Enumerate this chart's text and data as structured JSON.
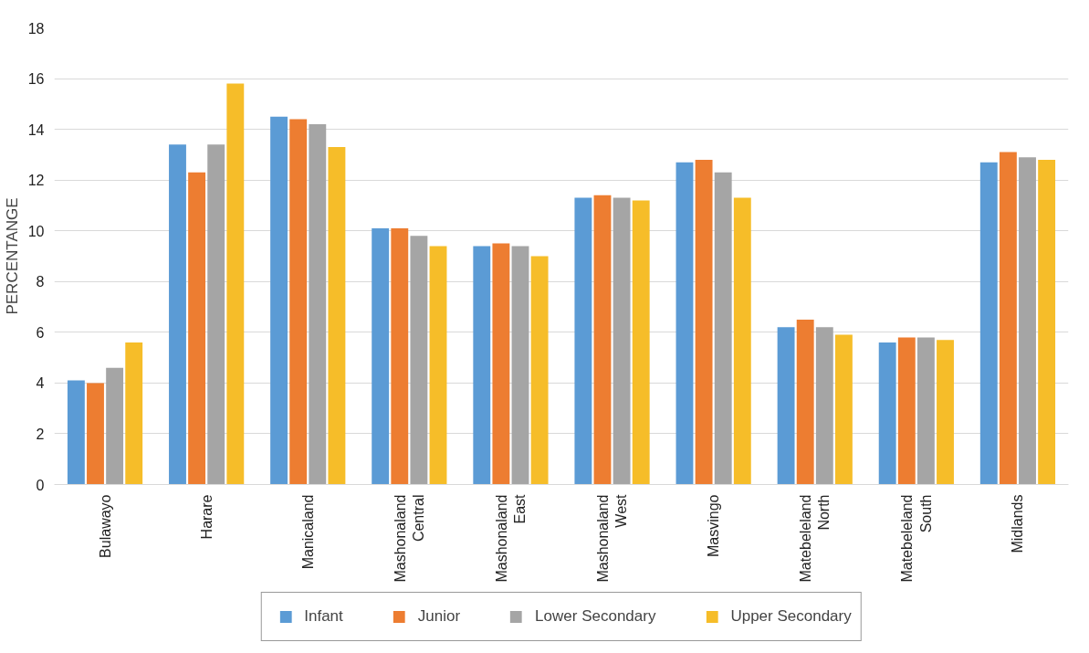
{
  "chart_data": {
    "type": "bar",
    "ylabel": "PERCENTANGE",
    "categories": [
      "Bulawayo",
      "Harare",
      "Manicaland",
      "Mashonaland\nCentral",
      "Mashonaland\nEast",
      "Mashonaland\nWest",
      "Masvingo",
      "Matebeleland\nNorth",
      "Matebeleland\nSouth",
      "Midlands"
    ],
    "series": [
      {
        "name": "Infant",
        "color": "#5b9bd5",
        "values": [
          4.1,
          13.4,
          14.5,
          10.1,
          9.4,
          11.3,
          12.7,
          6.2,
          5.6,
          12.7
        ]
      },
      {
        "name": "Junior",
        "color": "#ed7d31",
        "values": [
          4.0,
          12.3,
          14.4,
          10.1,
          9.5,
          11.4,
          12.8,
          6.5,
          5.8,
          13.1
        ]
      },
      {
        "name": "Lower Secondary",
        "color": "#a5a5a5",
        "values": [
          4.6,
          13.4,
          14.2,
          9.8,
          9.4,
          11.3,
          12.3,
          6.2,
          5.8,
          12.9
        ]
      },
      {
        "name": "Upper Secondary",
        "color": "#f6bd29",
        "values": [
          5.6,
          15.8,
          13.3,
          9.4,
          9.0,
          11.2,
          11.3,
          5.9,
          5.7,
          12.8
        ]
      }
    ],
    "ylim": [
      0,
      18
    ],
    "yticks": [
      0,
      2,
      4,
      6,
      8,
      10,
      12,
      14,
      16,
      18
    ],
    "grid": "y",
    "legend": "bottom"
  }
}
